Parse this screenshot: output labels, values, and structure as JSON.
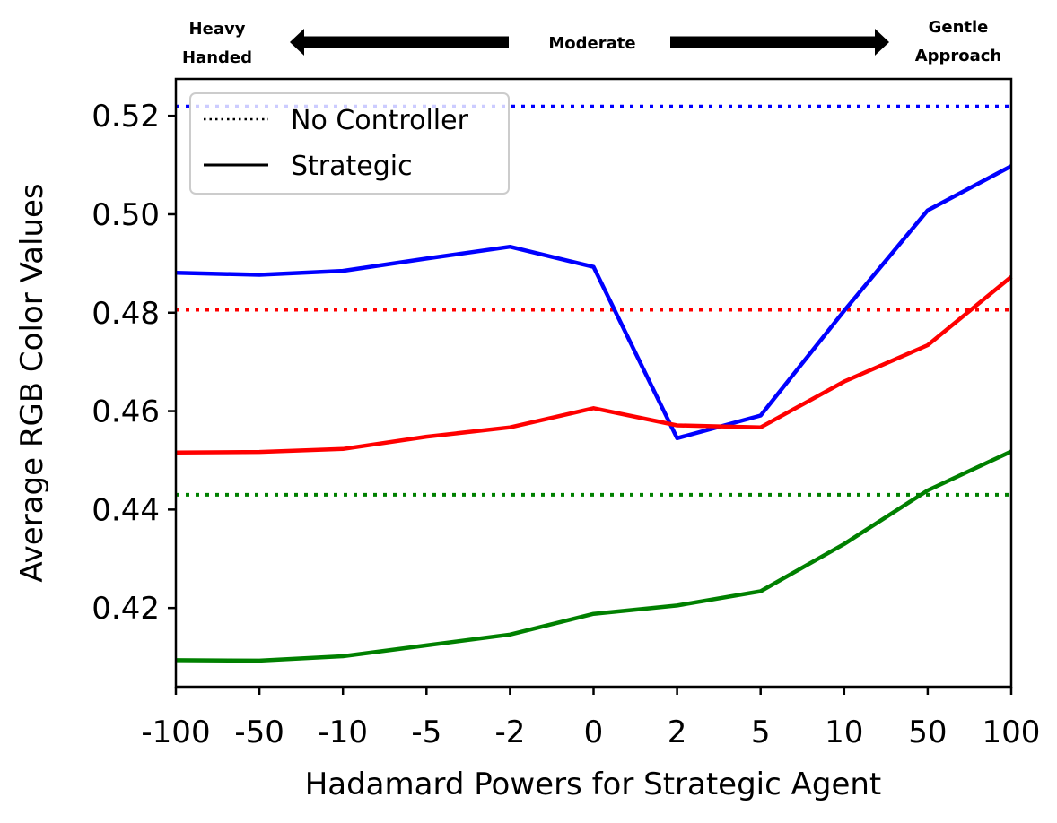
{
  "banner": {
    "left_line1": "Heavy",
    "left_line2": "Handed",
    "center": "Moderate",
    "right_line1": "Gentle",
    "right_line2": "Approach"
  },
  "chart_data": {
    "type": "line",
    "title": "",
    "xlabel": "Hadamard Powers for Strategic Agent",
    "ylabel": "Average RGB Color Values",
    "categories": [
      "-100",
      "-50",
      "-10",
      "-5",
      "-2",
      "0",
      "2",
      "5",
      "10",
      "50",
      "100"
    ],
    "ylim": [
      0.404,
      0.5275
    ],
    "yticks": [
      0.42,
      0.44,
      0.46,
      0.48,
      0.5,
      0.52
    ],
    "ytick_labels": [
      "0.42",
      "0.44",
      "0.46",
      "0.48",
      "0.50",
      "0.52"
    ],
    "grid": false,
    "legend_position": "top-left",
    "legend": [
      {
        "label": "No Controller",
        "style": "dotted"
      },
      {
        "label": "Strategic",
        "style": "solid"
      }
    ],
    "colors": {
      "blue": "#0000ff",
      "red": "#ff0000",
      "green": "#008000"
    },
    "series": [
      {
        "color": "#0000ff",
        "style": "solid",
        "values": [
          0.4881,
          0.4877,
          0.4885,
          0.491,
          0.4934,
          0.4893,
          0.4545,
          0.4591,
          0.4804,
          0.5008,
          0.5098
        ]
      },
      {
        "color": "#ff0000",
        "style": "solid",
        "values": [
          0.4516,
          0.4517,
          0.4523,
          0.4548,
          0.4567,
          0.4606,
          0.4571,
          0.4567,
          0.466,
          0.4734,
          0.4873
        ]
      },
      {
        "color": "#008000",
        "style": "solid",
        "values": [
          0.4094,
          0.4093,
          0.4102,
          0.4124,
          0.4146,
          0.4188,
          0.4205,
          0.4234,
          0.433,
          0.4439,
          0.4518
        ]
      }
    ],
    "baselines": [
      {
        "color": "#0000ff",
        "style": "dotted",
        "value": 0.5219
      },
      {
        "color": "#ff0000",
        "style": "dotted",
        "value": 0.4806
      },
      {
        "color": "#008000",
        "style": "dotted",
        "value": 0.443
      }
    ]
  }
}
